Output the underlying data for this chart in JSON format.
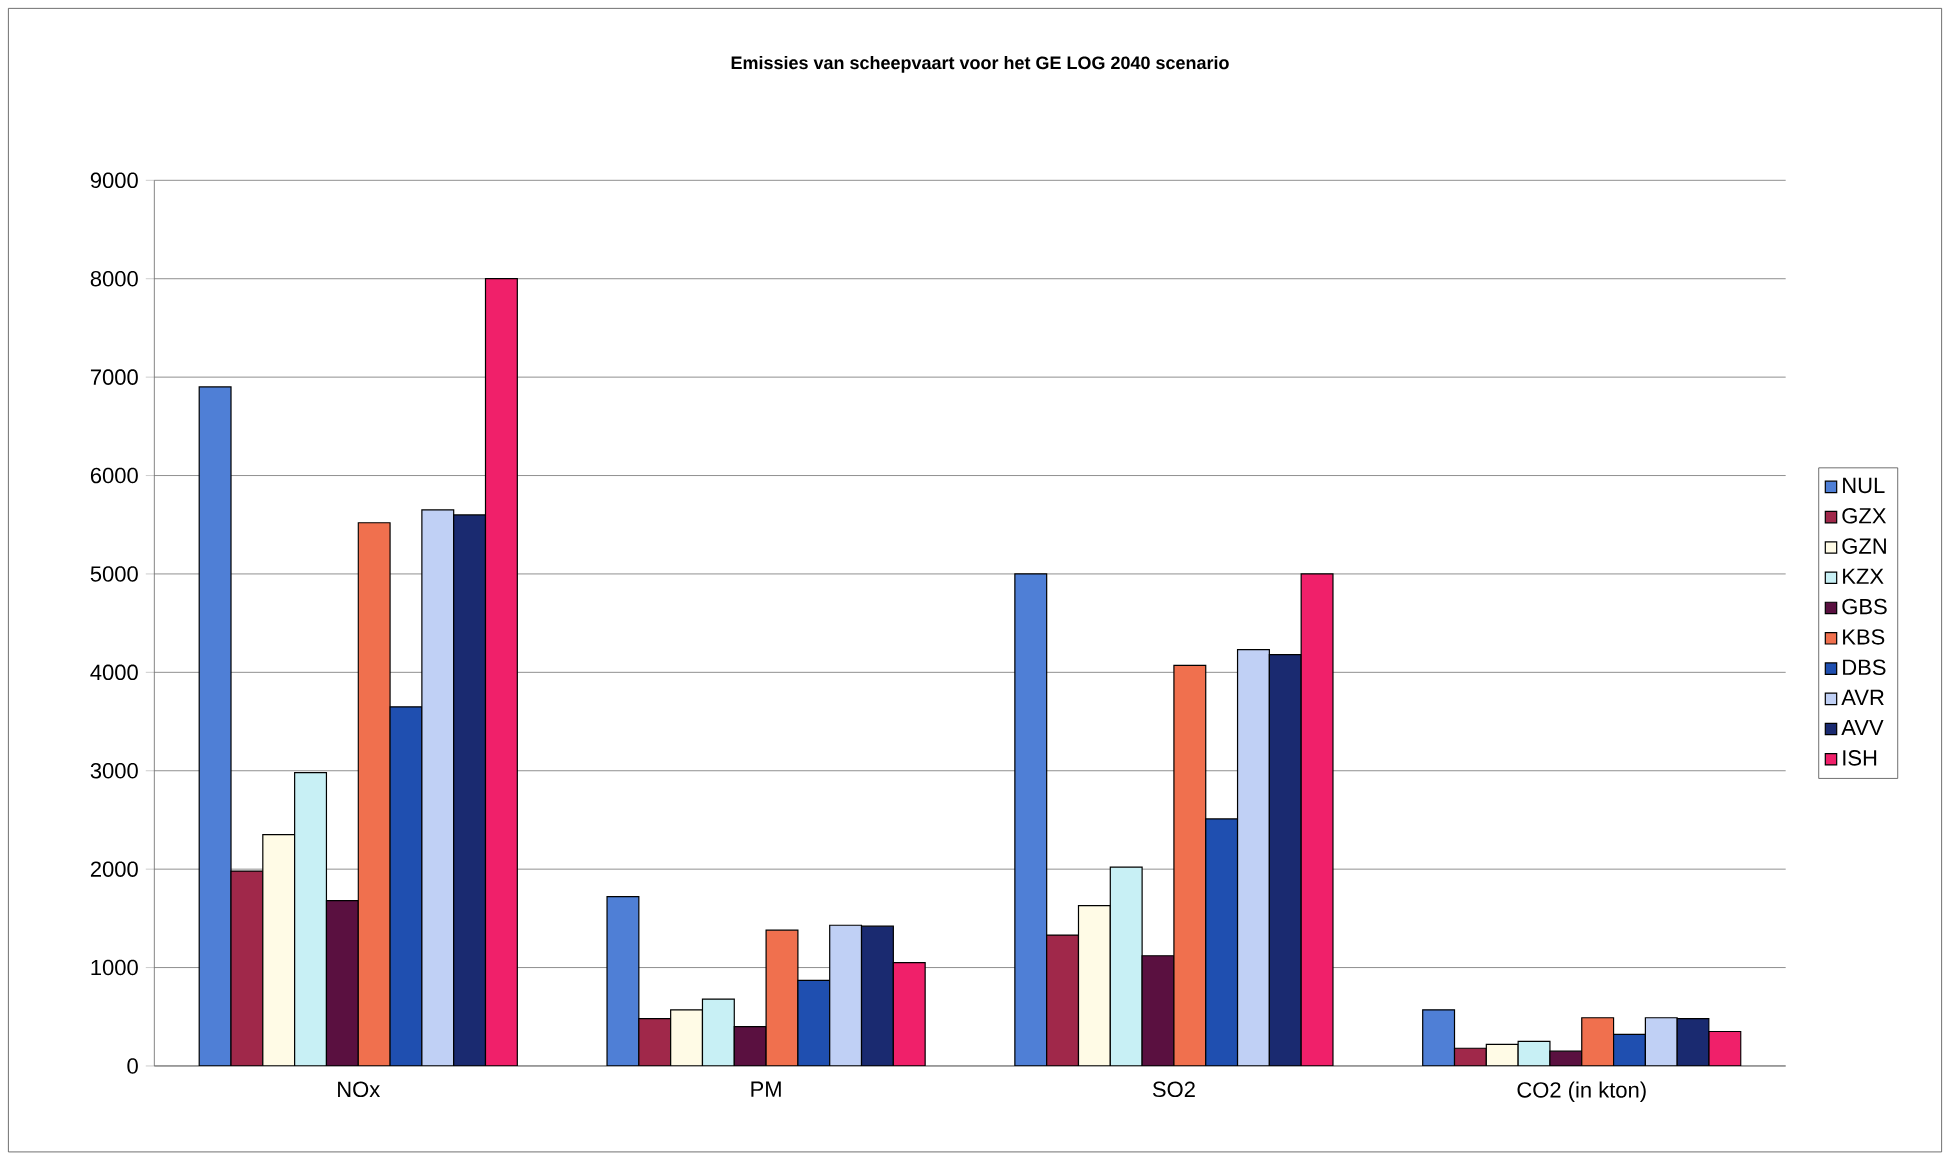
{
  "chart_data": {
    "type": "bar",
    "title": "Emissies van scheepvaart voor het GE LOG 2040 scenario",
    "categories": [
      "NOx",
      "PM",
      "SO2",
      "CO2 (in kton)"
    ],
    "series": [
      {
        "name": "NUL",
        "color": "#4f7fd6",
        "values": [
          6900,
          1720,
          5000,
          570
        ]
      },
      {
        "name": "GZX",
        "color": "#a0284a",
        "values": [
          1980,
          480,
          1330,
          180
        ]
      },
      {
        "name": "GZN",
        "color": "#fffbe6",
        "values": [
          2350,
          570,
          1630,
          220
        ]
      },
      {
        "name": "KZX",
        "color": "#c8f0f5",
        "values": [
          2980,
          680,
          2020,
          250
        ]
      },
      {
        "name": "GBS",
        "color": "#5a1040",
        "values": [
          1680,
          400,
          1120,
          150
        ]
      },
      {
        "name": "KBS",
        "color": "#f0704e",
        "values": [
          5520,
          1380,
          4070,
          490
        ]
      },
      {
        "name": "DBS",
        "color": "#1f4fb0",
        "values": [
          3650,
          870,
          2510,
          320
        ]
      },
      {
        "name": "AVR",
        "color": "#c0d0f5",
        "values": [
          5650,
          1430,
          4230,
          490
        ]
      },
      {
        "name": "AVV",
        "color": "#1a2a70",
        "values": [
          5600,
          1420,
          4180,
          480
        ]
      },
      {
        "name": "ISH",
        "color": "#f0206a",
        "values": [
          8000,
          1050,
          5000,
          350
        ]
      }
    ],
    "ylim": [
      0,
      9000
    ],
    "yticks": [
      0,
      1000,
      2000,
      3000,
      4000,
      5000,
      6000,
      7000,
      8000,
      9000
    ],
    "grid": "y",
    "legend": "right"
  }
}
